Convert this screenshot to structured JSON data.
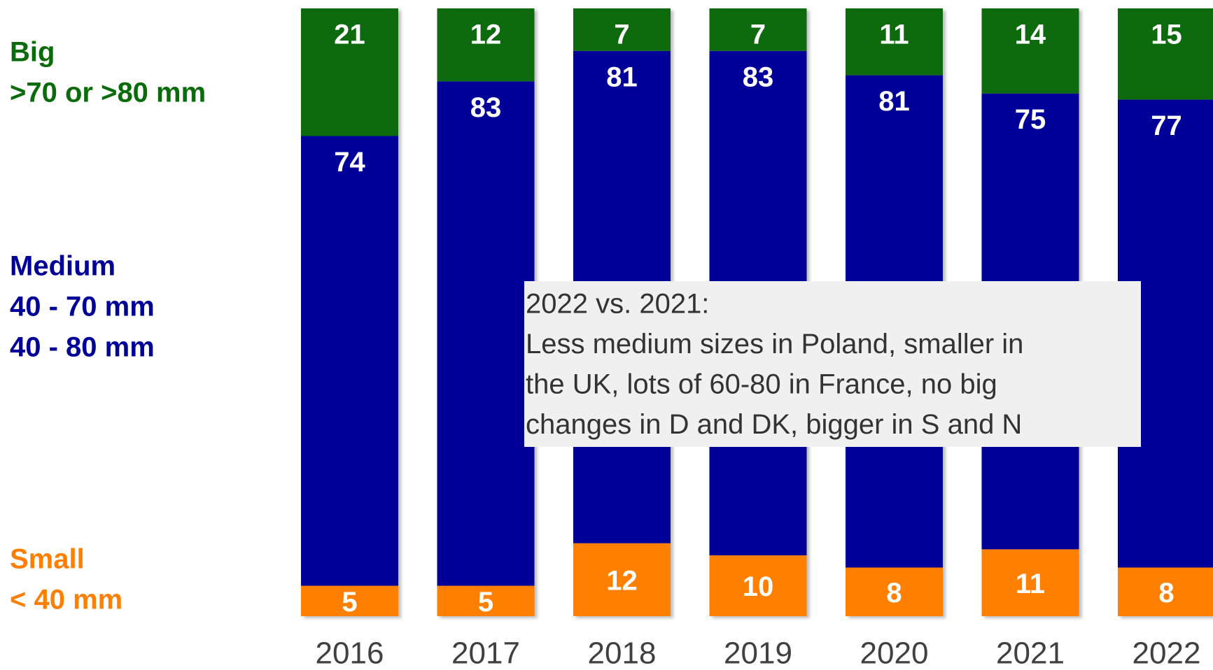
{
  "chart_data": {
    "type": "stacked_bar",
    "categories": [
      "2016",
      "2017",
      "2018",
      "2019",
      "2020",
      "2021",
      "2022"
    ],
    "series": [
      {
        "name": "Small",
        "sublabel": [
          "< 40 mm"
        ],
        "color": "#ff7f00",
        "values": [
          5,
          5,
          12,
          10,
          8,
          11,
          8
        ]
      },
      {
        "name": "Medium",
        "sublabel": [
          "40 - 70 mm",
          "40 - 80 mm"
        ],
        "color": "#000099",
        "values": [
          74,
          83,
          81,
          83,
          81,
          75,
          77
        ]
      },
      {
        "name": "Big",
        "sublabel": [
          ">70 or >80 mm"
        ],
        "color": "#0a6b0a",
        "values": [
          21,
          12,
          7,
          7,
          11,
          14,
          15
        ]
      }
    ],
    "ylim": [
      0,
      100
    ],
    "annotation": [
      "2022 vs. 2021:",
      "Less medium sizes in Poland, smaller in",
      "the UK, lots of 60-80 in France, no big",
      "changes in D and DK, bigger in S and N"
    ]
  }
}
